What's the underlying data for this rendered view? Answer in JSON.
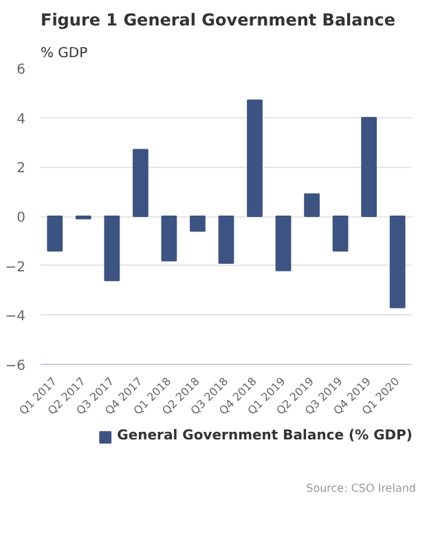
{
  "chart_data": {
    "type": "bar",
    "title": "Figure 1 General Government Balance",
    "ylabel": "% GDP",
    "categories": [
      "Q1 2017",
      "Q2 2017",
      "Q3 2017",
      "Q4 2017",
      "Q1 2018",
      "Q2 2018",
      "Q3 2018",
      "Q4 2018",
      "Q1 2019",
      "Q2 2019",
      "Q3 2019",
      "Q4 2019",
      "Q1 2020"
    ],
    "series": [
      {
        "name": "General Government Balance (% GDP)",
        "color": "#3d5382",
        "values": [
          -1.4,
          -0.1,
          -2.6,
          2.7,
          -1.8,
          -0.6,
          -1.9,
          4.7,
          -2.2,
          0.9,
          -1.4,
          4.0,
          -3.7
        ]
      }
    ],
    "ylim": [
      -6,
      6
    ],
    "yticks": [
      -6,
      -4,
      -2,
      0,
      2,
      4,
      6
    ],
    "grid": "y",
    "legend": "bottom",
    "annotations": [
      "Source: CSO Ireland"
    ]
  }
}
